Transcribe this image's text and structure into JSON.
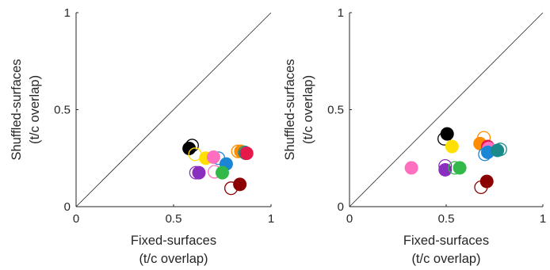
{
  "chart_data": [
    {
      "type": "scatter",
      "xlabel": [
        "Fixed-surfaces",
        "(t/c overlap)"
      ],
      "ylabel": [
        "Shuffled-surfaces",
        "(t/c overlap)"
      ],
      "xlim": [
        0,
        1
      ],
      "ylim": [
        0,
        1
      ],
      "x_ticks": [
        0,
        0.5,
        1
      ],
      "y_ticks": [
        0,
        0.5,
        1
      ],
      "x_tick_labels": [
        "0",
        "0.5",
        "1"
      ],
      "y_tick_labels": [
        "0",
        "0.5",
        "1"
      ],
      "reference_line": "y = x",
      "grid": false,
      "points": [
        {
          "x": 0.595,
          "y": 0.315,
          "color": "#000000",
          "filled": false
        },
        {
          "x": 0.58,
          "y": 0.3,
          "color": "#000000",
          "filled": true
        },
        {
          "x": 0.61,
          "y": 0.27,
          "color": "#ffe000",
          "filled": false
        },
        {
          "x": 0.665,
          "y": 0.25,
          "color": "#ffe000",
          "filled": true
        },
        {
          "x": 0.73,
          "y": 0.25,
          "color": "#1b86d6",
          "filled": false
        },
        {
          "x": 0.77,
          "y": 0.22,
          "color": "#1b86d6",
          "filled": true
        },
        {
          "x": 0.705,
          "y": 0.255,
          "color": "#ff6fbf",
          "filled": true
        },
        {
          "x": 0.83,
          "y": 0.285,
          "color": "#ff8c00",
          "filled": false
        },
        {
          "x": 0.845,
          "y": 0.285,
          "color": "#ff8c00",
          "filled": true
        },
        {
          "x": 0.865,
          "y": 0.28,
          "color": "#1b8a8a",
          "filled": false
        },
        {
          "x": 0.87,
          "y": 0.275,
          "color": "#1b8a8a",
          "filled": true
        },
        {
          "x": 0.875,
          "y": 0.275,
          "color": "#e6194b",
          "filled": true
        },
        {
          "x": 0.615,
          "y": 0.175,
          "color": "#8a2ec0",
          "filled": false
        },
        {
          "x": 0.63,
          "y": 0.175,
          "color": "#8a2ec0",
          "filled": true
        },
        {
          "x": 0.71,
          "y": 0.18,
          "color": "#ff6fbf",
          "filled": false
        },
        {
          "x": 0.75,
          "y": 0.175,
          "color": "#33b84a",
          "filled": true
        },
        {
          "x": 0.795,
          "y": 0.095,
          "color": "#8b0000",
          "filled": false
        },
        {
          "x": 0.84,
          "y": 0.115,
          "color": "#8b0000",
          "filled": true
        }
      ]
    },
    {
      "type": "scatter",
      "xlabel": [
        "Fixed-surfaces",
        "(t/c overlap)"
      ],
      "ylabel": [
        "Shuffled-surfaces",
        "(t/c overlap)"
      ],
      "xlim": [
        0,
        1
      ],
      "ylim": [
        0,
        1
      ],
      "x_ticks": [
        0,
        0.5,
        1
      ],
      "y_ticks": [
        0,
        0.5,
        1
      ],
      "x_tick_labels": [
        "0",
        "0.5",
        "1"
      ],
      "y_tick_labels": [
        "0",
        "0.5",
        "1"
      ],
      "reference_line": "y = x",
      "grid": false,
      "points": [
        {
          "x": 0.49,
          "y": 0.35,
          "color": "#000000",
          "filled": false
        },
        {
          "x": 0.505,
          "y": 0.375,
          "color": "#000000",
          "filled": true
        },
        {
          "x": 0.53,
          "y": 0.31,
          "color": "#ffe000",
          "filled": true
        },
        {
          "x": 0.695,
          "y": 0.355,
          "color": "#ff8c00",
          "filled": false
        },
        {
          "x": 0.675,
          "y": 0.325,
          "color": "#ff8c00",
          "filled": true
        },
        {
          "x": 0.715,
          "y": 0.31,
          "color": "#e6194b",
          "filled": true
        },
        {
          "x": 0.72,
          "y": 0.3,
          "color": "#ff6fbf",
          "filled": true
        },
        {
          "x": 0.7,
          "y": 0.27,
          "color": "#1b86d6",
          "filled": false
        },
        {
          "x": 0.715,
          "y": 0.28,
          "color": "#1b86d6",
          "filled": true
        },
        {
          "x": 0.78,
          "y": 0.295,
          "color": "#1b8a8a",
          "filled": false
        },
        {
          "x": 0.765,
          "y": 0.29,
          "color": "#1b8a8a",
          "filled": true
        },
        {
          "x": 0.32,
          "y": 0.2,
          "color": "#ff6fbf",
          "filled": true
        },
        {
          "x": 0.495,
          "y": 0.21,
          "color": "#8a2ec0",
          "filled": false
        },
        {
          "x": 0.495,
          "y": 0.19,
          "color": "#8a2ec0",
          "filled": true
        },
        {
          "x": 0.545,
          "y": 0.2,
          "color": "#33b84a",
          "filled": false
        },
        {
          "x": 0.57,
          "y": 0.2,
          "color": "#33b84a",
          "filled": true
        },
        {
          "x": 0.68,
          "y": 0.1,
          "color": "#8b0000",
          "filled": false
        },
        {
          "x": 0.71,
          "y": 0.13,
          "color": "#8b0000",
          "filled": true
        }
      ]
    }
  ]
}
